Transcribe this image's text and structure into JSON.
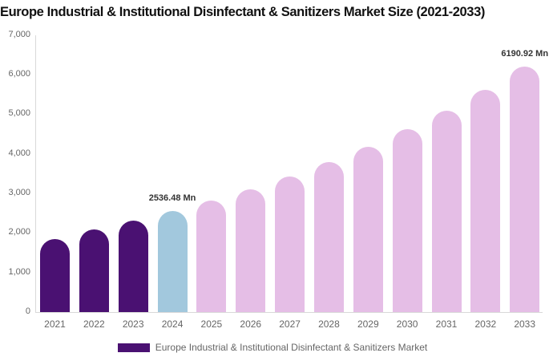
{
  "title": "Europe Industrial & Institutional Disinfectant & Sanitizers Market Size (2021-2033)",
  "legend": {
    "label": "Europe Industrial & Institutional Disinfectant & Sanitizers Market",
    "swatch_color": "#4a1172"
  },
  "chart_data": {
    "type": "bar",
    "title": "Europe Industrial & Institutional Disinfectant & Sanitizers Market Size (2021-2033)",
    "categories": [
      "2021",
      "2022",
      "2023",
      "2024",
      "2025",
      "2026",
      "2027",
      "2028",
      "2029",
      "2030",
      "2031",
      "2032",
      "2033"
    ],
    "values": [
      1840,
      2080,
      2290,
      2536.48,
      2800,
      3090,
      3415,
      3770,
      4165,
      4600,
      5075,
      5605,
      6190.92
    ],
    "value_unit": "Mn",
    "xlabel": "",
    "ylabel": "",
    "ylim": [
      0,
      7000
    ],
    "yticks": [
      "0",
      "1,000",
      "2,000",
      "3,000",
      "4,000",
      "5,000",
      "6,000",
      "7,000"
    ],
    "grid": false,
    "legend_position": "bottom",
    "point_styles": [
      "historical",
      "historical",
      "historical",
      "base_year",
      "forecast",
      "forecast",
      "forecast",
      "forecast",
      "forecast",
      "forecast",
      "forecast",
      "forecast",
      "forecast"
    ],
    "colors": {
      "historical": "#4a1172",
      "base_year": "#a2c8dd",
      "forecast": "#e5bee6"
    },
    "axis_color": "#d9d9d9",
    "label_color": "#666666",
    "data_labels": [
      {
        "category": "2024",
        "text": "2536.48 Mn"
      },
      {
        "category": "2033",
        "text": "6190.92 Mn"
      }
    ]
  }
}
